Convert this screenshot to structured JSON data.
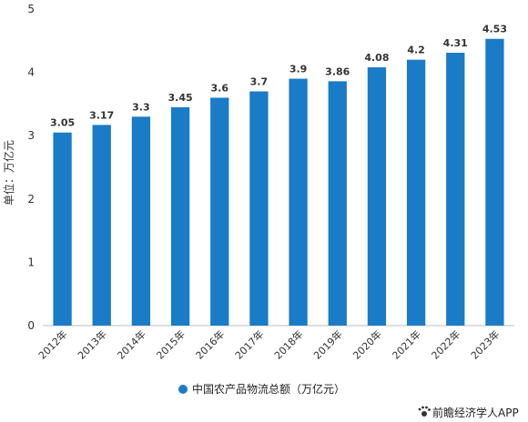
{
  "chart_data": {
    "type": "bar",
    "categories": [
      "2012年",
      "2013年",
      "2014年",
      "2015年",
      "2016年",
      "2017年",
      "2018年",
      "2019年",
      "2020年",
      "2021年",
      "2022年",
      "2023年"
    ],
    "series": [
      {
        "name": "中国农产品物流总额（万亿元）",
        "values": [
          3.05,
          3.17,
          3.3,
          3.45,
          3.6,
          3.7,
          3.9,
          3.86,
          4.08,
          4.2,
          4.31,
          4.53
        ],
        "labels": [
          "3.05",
          "3.17",
          "3.3",
          "3.45",
          "3.6",
          "3.7",
          "3.9",
          "3.86",
          "4.08",
          "4.2",
          "4.31",
          "4.53"
        ]
      }
    ],
    "ylabel": "单位：万亿元",
    "ylim": [
      0,
      5
    ],
    "yticks": [
      "0",
      "1",
      "2",
      "3",
      "4",
      "5"
    ],
    "grid": false,
    "legend": "bottom-center"
  },
  "colors": {
    "bar": "#1a7bc7",
    "axis": "#bfbfbf"
  },
  "credit": {
    "icon": "paw-icon",
    "text": "前瞻经济学人APP"
  }
}
